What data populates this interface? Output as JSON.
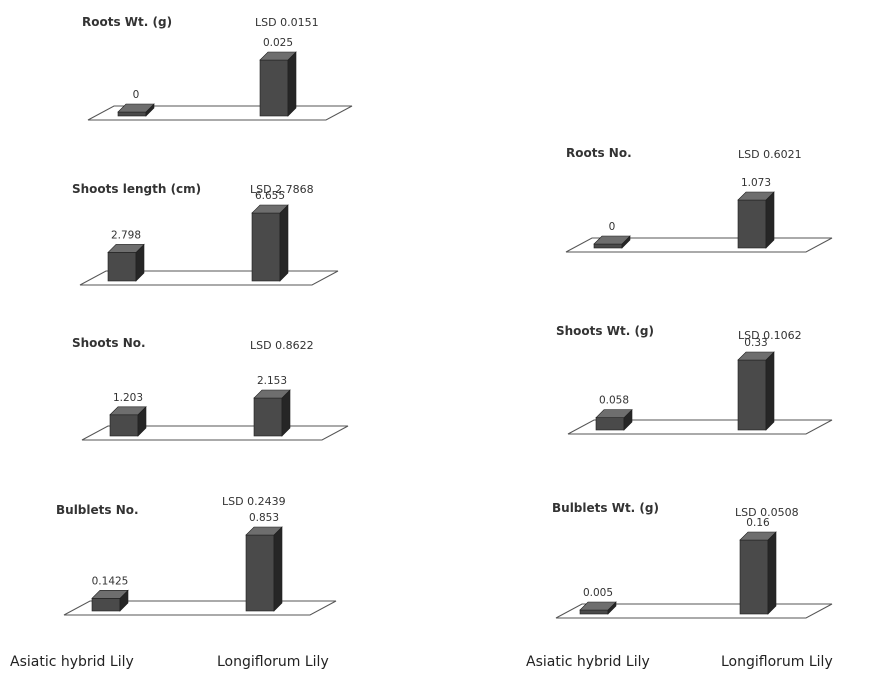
{
  "categories": [
    "Asiatic hybrid Lily",
    "Longiflorum  Lily"
  ],
  "colors": {
    "bar_front": "#4a4a4a",
    "bar_side": "#262626",
    "bar_top": "#6e6e6e",
    "floor_edge": "#555555"
  },
  "chart_data": [
    {
      "type": "bar",
      "title": "Roots Wt. (g)",
      "lsd": "LSD 0.0151",
      "categories": [
        "Asiatic hybrid Lily",
        "Longiflorum  Lily"
      ],
      "values": [
        0,
        0.025
      ],
      "labels": [
        "0",
        "0.025"
      ]
    },
    {
      "type": "bar",
      "title": "Shoots  length (cm)",
      "lsd": "LSD  2.7868",
      "categories": [
        "Asiatic hybrid Lily",
        "Longiflorum  Lily"
      ],
      "values": [
        2.798,
        6.655
      ],
      "labels": [
        "2.798",
        "6.655"
      ]
    },
    {
      "type": "bar",
      "title": "Shoots No.",
      "lsd": "LSD  0.8622",
      "categories": [
        "Asiatic hybrid Lily",
        "Longiflorum  Lily"
      ],
      "values": [
        1.203,
        2.153
      ],
      "labels": [
        "1.203",
        "2.153"
      ]
    },
    {
      "type": "bar",
      "title": "Bulblets No.",
      "lsd": "LSD 0.2439",
      "categories": [
        "Asiatic hybrid Lily",
        "Longiflorum  Lily"
      ],
      "values": [
        0.1425,
        0.853
      ],
      "labels": [
        "0.1425",
        "0.853"
      ]
    },
    {
      "type": "bar",
      "title": "Roots No.",
      "lsd": "LSD  0.6021",
      "categories": [
        "Asiatic hybrid Lily",
        "Longiflorum  Lily"
      ],
      "values": [
        0,
        1.073
      ],
      "labels": [
        "0",
        "1.073"
      ]
    },
    {
      "type": "bar",
      "title": "Shoots Wt. (g)",
      "lsd": "LSD  0.1062",
      "categories": [
        "Asiatic hybrid Lily",
        "Longiflorum  Lily"
      ],
      "values": [
        0.058,
        0.33
      ],
      "labels": [
        "0.058",
        "0.33"
      ]
    },
    {
      "type": "bar",
      "title": "Bulblets Wt. (g)",
      "lsd": "LSD  0.0508",
      "categories": [
        "Asiatic hybrid Lily",
        "Longiflorum  Lily"
      ],
      "values": [
        0.005,
        0.16
      ],
      "labels": [
        "0.005",
        "0.16"
      ]
    }
  ]
}
